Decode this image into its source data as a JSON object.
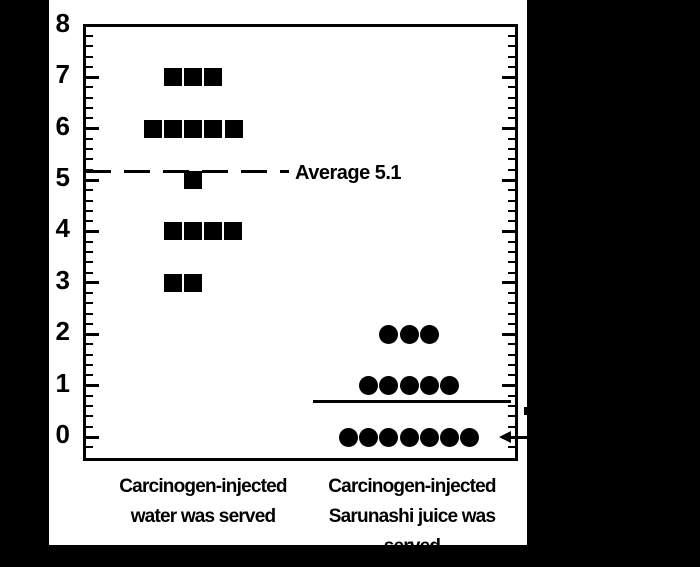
{
  "figure": {
    "outer_background": "#000000",
    "panel_background": "#ffffff",
    "ink_color": "#000000"
  },
  "y_axis": {
    "tick_labels": [
      "8",
      "7",
      "6",
      "5",
      "4",
      "3",
      "2",
      "1",
      "0"
    ]
  },
  "chart_data": {
    "type": "scatter",
    "title": "",
    "xlabel": "",
    "ylabel": "",
    "ylim": [
      -0.45,
      8
    ],
    "yticks": [
      0,
      1,
      2,
      3,
      4,
      5,
      6,
      7,
      8
    ],
    "minor_tick_step": 0.2,
    "grid": false,
    "legend": "none",
    "categories": [
      "Carcinogen-injected water was served",
      "Carcinogen-injected Sarunashi juice was served"
    ],
    "series": [
      {
        "name": "Carcinogen-injected water was served",
        "marker": "square",
        "rows": [
          {
            "y": 7,
            "count": 3,
            "dx": 0
          },
          {
            "y": 6,
            "count": 5,
            "dx": 0
          },
          {
            "y": 5,
            "count": 1,
            "dx": 0
          },
          {
            "y": 4,
            "count": 4,
            "dx": 10
          },
          {
            "y": 3,
            "count": 2,
            "dx": -10
          }
        ],
        "n_total": 15,
        "average": 5.1,
        "average_label": "Average 5.1",
        "average_line_style": "dashed"
      },
      {
        "name": "Carcinogen-injected Sarunashi juice was served",
        "marker": "circle",
        "rows": [
          {
            "y": 2,
            "count": 3,
            "dx": 0
          },
          {
            "y": 1,
            "count": 5,
            "dx": 0
          },
          {
            "y": 0,
            "count": 7,
            "dx": 0
          }
        ],
        "n_total": 15,
        "average": 0.7,
        "average_label": "",
        "average_line_style": "solid"
      }
    ],
    "annotations": [
      {
        "type": "text",
        "text": "Average 5.1",
        "at_y": 5.1
      },
      {
        "type": "arrow",
        "direction": "left",
        "points_to_y": 0,
        "note": "tail cropped at right image edge"
      },
      {
        "type": "cropped-label-fragment",
        "note": "label cut off at right image edge near y=0.7 line"
      }
    ]
  },
  "x_category_labels": [
    {
      "lines": [
        "Carcinogen-injected",
        "water was served"
      ]
    },
    {
      "lines": [
        "Carcinogen-injected",
        "Sarunashi juice was",
        "served"
      ]
    }
  ]
}
